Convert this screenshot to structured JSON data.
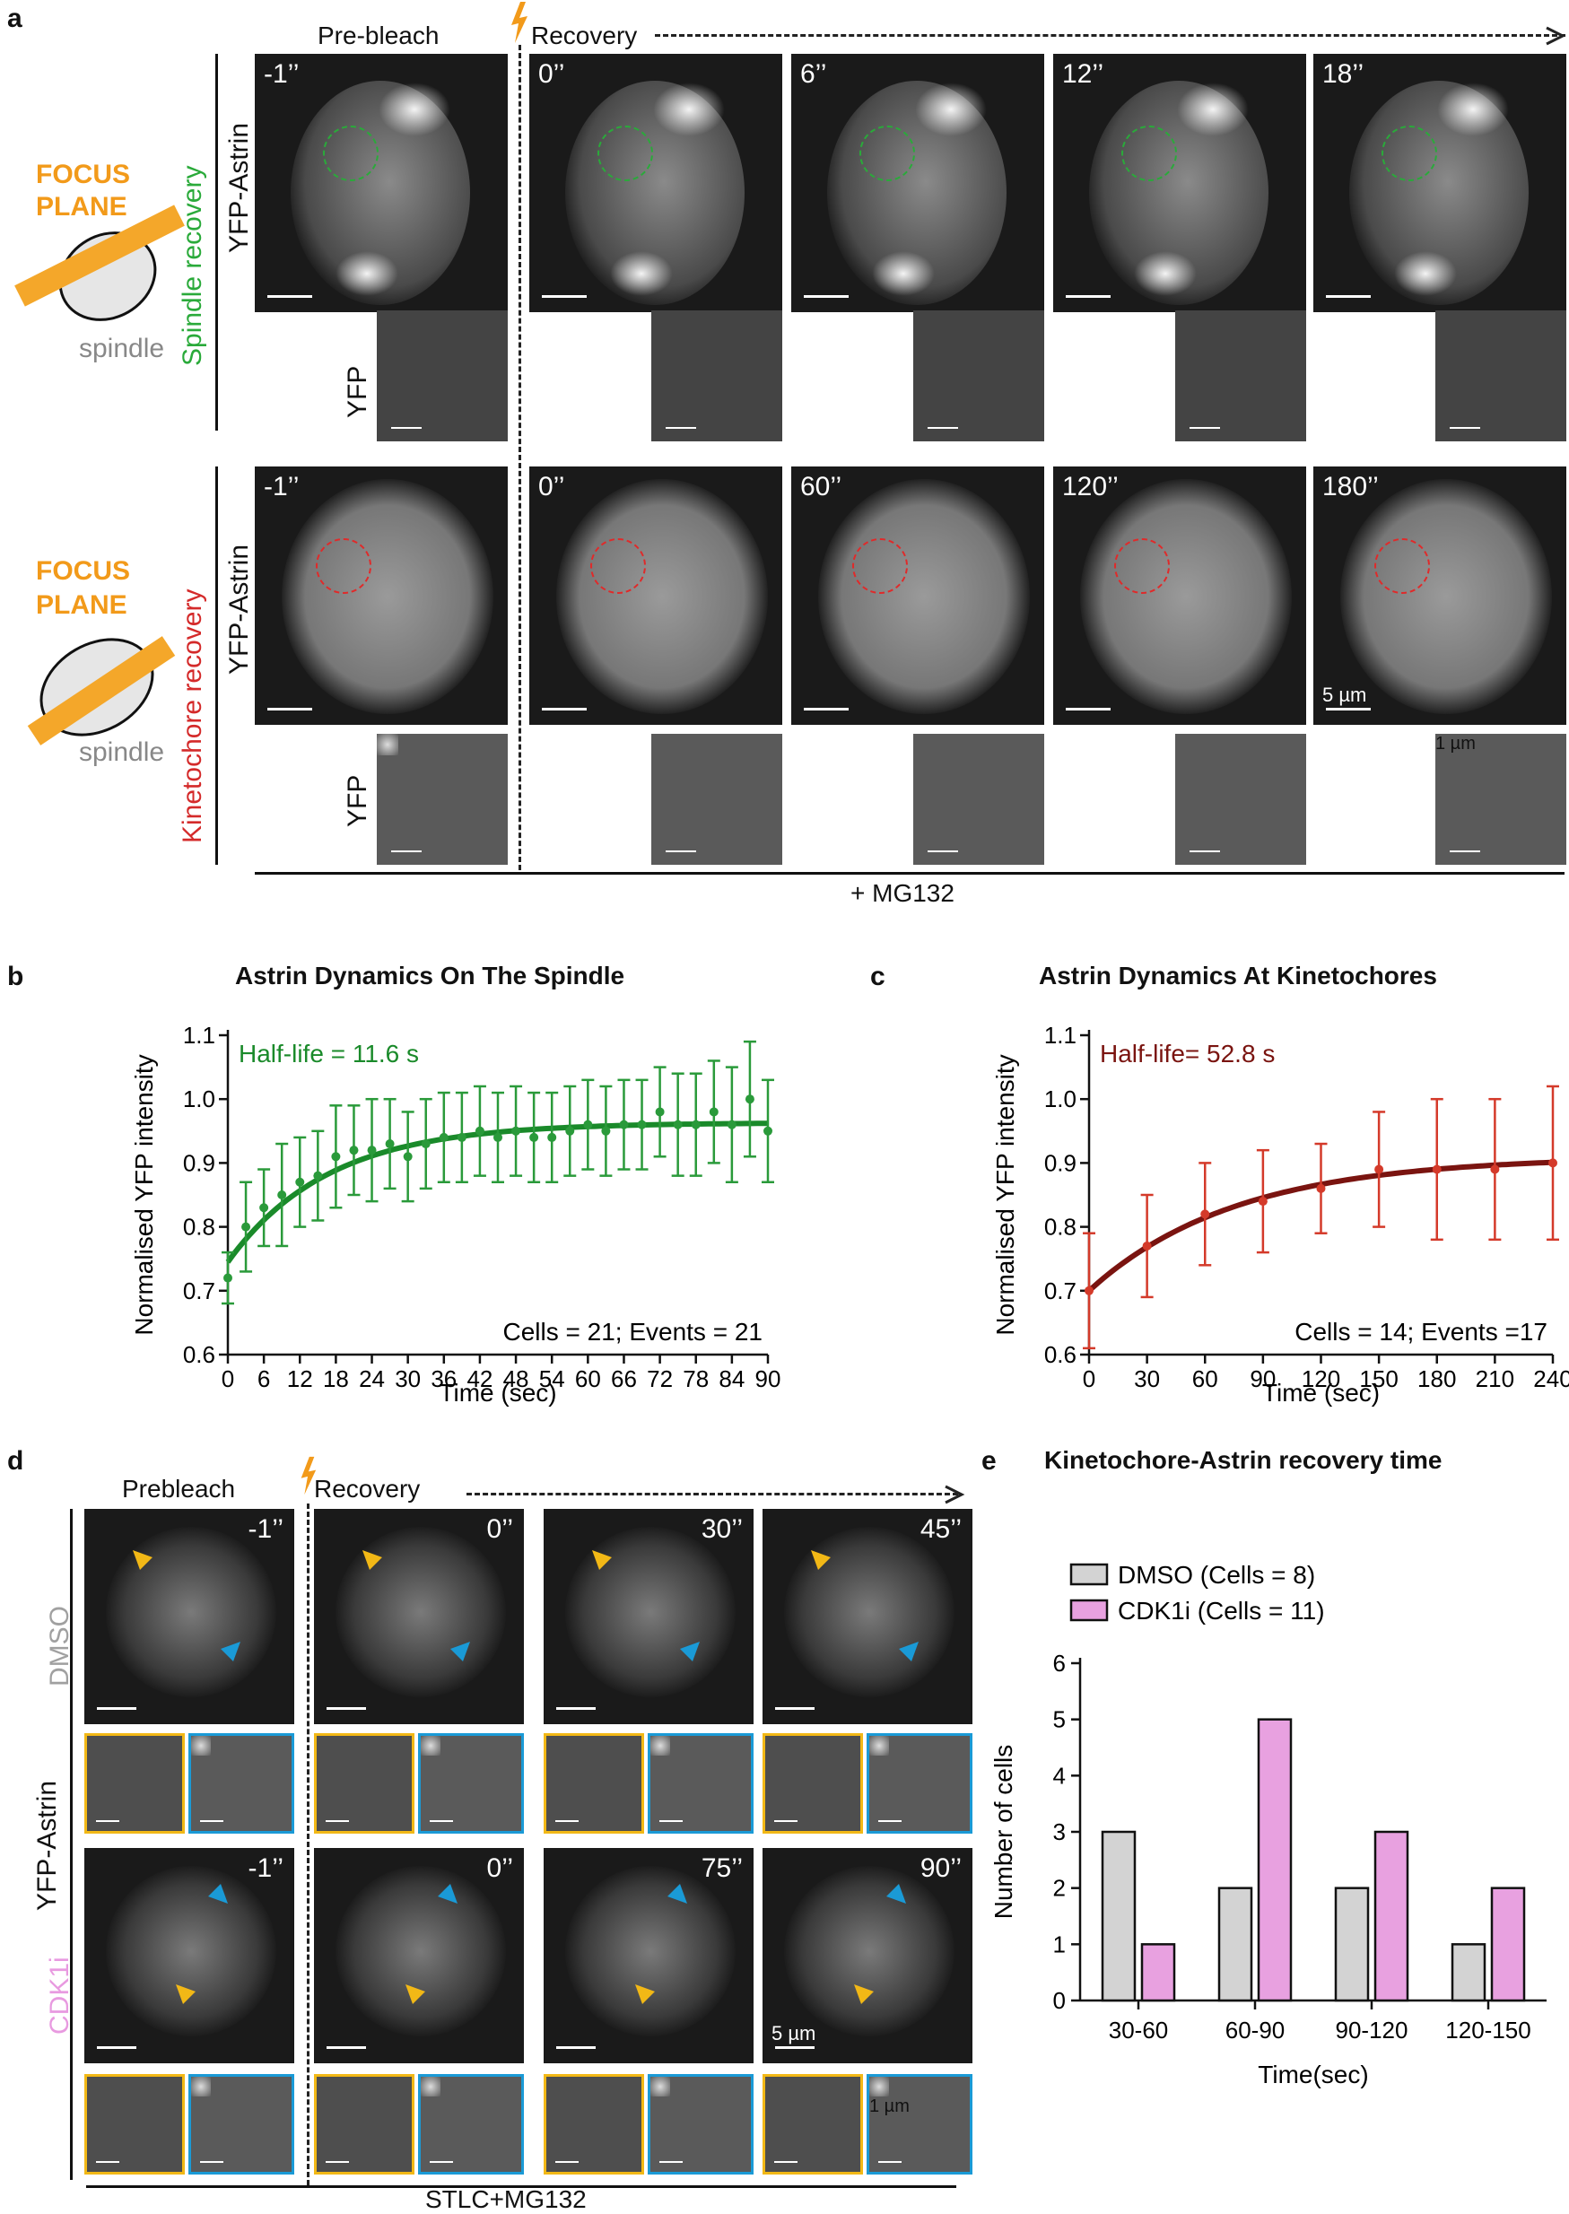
{
  "panel_a": {
    "letter": "a",
    "header_prebleach": "Pre-bleach",
    "header_recovery": "Recovery",
    "focus_plane": [
      "FOCUS",
      "PLANE"
    ],
    "spindle_word": "spindle",
    "row1_label": "Spindle recovery",
    "row2_label": "Kinetochore recovery",
    "channel_label": "YFP-Astrin",
    "zoom_label": "YFP",
    "times_spindle": [
      "-1’’",
      "0’’",
      "6’’",
      "12’’",
      "18’’"
    ],
    "times_kinetochore": [
      "-1’’",
      "0’’",
      "60’’",
      "120’’",
      "180’’"
    ],
    "scale_big": "5 µm",
    "scale_small": "1 µm",
    "treatment": "+ MG132"
  },
  "panel_b": {
    "letter": "b",
    "chart_data": {
      "type": "line",
      "title": "Astrin Dynamics On The Spindle",
      "xlabel": "Time (sec)",
      "ylabel": "Normalised YFP intensity",
      "xlim": [
        0,
        90
      ],
      "ylim": [
        0.6,
        1.1
      ],
      "xticks": [
        0,
        6,
        12,
        18,
        24,
        30,
        36,
        42,
        48,
        54,
        60,
        66,
        72,
        78,
        84,
        90
      ],
      "yticks": [
        0.6,
        0.7,
        0.8,
        0.9,
        1.0,
        1.1
      ],
      "annotation": "Half-life = 11.6 s",
      "note": "Cells = 21; Events = 21",
      "color": "#2a9a3a",
      "fit_color": "#1a8a2a",
      "fit": {
        "y0": 0.745,
        "plateau": 0.963,
        "half_life": 11.6
      },
      "points": [
        {
          "x": 0,
          "y": 0.72,
          "err": 0.04
        },
        {
          "x": 3,
          "y": 0.8,
          "err": 0.07
        },
        {
          "x": 6,
          "y": 0.83,
          "err": 0.06
        },
        {
          "x": 9,
          "y": 0.85,
          "err": 0.08
        },
        {
          "x": 12,
          "y": 0.87,
          "err": 0.07
        },
        {
          "x": 15,
          "y": 0.88,
          "err": 0.07
        },
        {
          "x": 18,
          "y": 0.91,
          "err": 0.08
        },
        {
          "x": 21,
          "y": 0.92,
          "err": 0.07
        },
        {
          "x": 24,
          "y": 0.92,
          "err": 0.08
        },
        {
          "x": 27,
          "y": 0.93,
          "err": 0.07
        },
        {
          "x": 30,
          "y": 0.91,
          "err": 0.07
        },
        {
          "x": 33,
          "y": 0.93,
          "err": 0.07
        },
        {
          "x": 36,
          "y": 0.94,
          "err": 0.07
        },
        {
          "x": 39,
          "y": 0.94,
          "err": 0.07
        },
        {
          "x": 42,
          "y": 0.95,
          "err": 0.07
        },
        {
          "x": 45,
          "y": 0.94,
          "err": 0.07
        },
        {
          "x": 48,
          "y": 0.95,
          "err": 0.07
        },
        {
          "x": 51,
          "y": 0.94,
          "err": 0.07
        },
        {
          "x": 54,
          "y": 0.94,
          "err": 0.07
        },
        {
          "x": 57,
          "y": 0.95,
          "err": 0.07
        },
        {
          "x": 60,
          "y": 0.96,
          "err": 0.07
        },
        {
          "x": 63,
          "y": 0.95,
          "err": 0.07
        },
        {
          "x": 66,
          "y": 0.96,
          "err": 0.07
        },
        {
          "x": 69,
          "y": 0.96,
          "err": 0.07
        },
        {
          "x": 72,
          "y": 0.98,
          "err": 0.07
        },
        {
          "x": 75,
          "y": 0.96,
          "err": 0.08
        },
        {
          "x": 78,
          "y": 0.96,
          "err": 0.08
        },
        {
          "x": 81,
          "y": 0.98,
          "err": 0.08
        },
        {
          "x": 84,
          "y": 0.96,
          "err": 0.09
        },
        {
          "x": 87,
          "y": 1.0,
          "err": 0.09
        },
        {
          "x": 90,
          "y": 0.95,
          "err": 0.08
        }
      ]
    }
  },
  "panel_c": {
    "letter": "c",
    "chart_data": {
      "type": "line",
      "title": "Astrin Dynamics At Kinetochores",
      "xlabel": "Time (sec)",
      "ylabel": "Normalised YFP intensity",
      "xlim": [
        0,
        240
      ],
      "ylim": [
        0.6,
        1.1
      ],
      "xticks": [
        0,
        30,
        60,
        90,
        120,
        150,
        180,
        210,
        240
      ],
      "yticks": [
        0.6,
        0.7,
        0.8,
        0.9,
        1.0,
        1.1
      ],
      "annotation": "Half-life= 52.8 s",
      "note": "Cells = 14; Events =17",
      "color": "#d43a2a",
      "fit_color": "#7a1410",
      "fit": {
        "y0": 0.7,
        "plateau": 0.91,
        "half_life": 52.8
      },
      "points": [
        {
          "x": 0,
          "y": 0.7,
          "err": 0.09
        },
        {
          "x": 30,
          "y": 0.77,
          "err": 0.08
        },
        {
          "x": 60,
          "y": 0.82,
          "err": 0.08
        },
        {
          "x": 90,
          "y": 0.84,
          "err": 0.08
        },
        {
          "x": 120,
          "y": 0.86,
          "err": 0.07
        },
        {
          "x": 150,
          "y": 0.89,
          "err": 0.09
        },
        {
          "x": 180,
          "y": 0.89,
          "err": 0.11
        },
        {
          "x": 210,
          "y": 0.89,
          "err": 0.11
        },
        {
          "x": 240,
          "y": 0.9,
          "err": 0.12
        }
      ]
    }
  },
  "panel_d": {
    "letter": "d",
    "header_prebleach": "Prebleach",
    "header_recovery": "Recovery",
    "channel_label": "YFP-Astrin",
    "row1_label": "DMSO",
    "row2_label": "CDK1i",
    "times_dmso": [
      "-1’’",
      "0’’",
      "30’’",
      "45’’"
    ],
    "times_cdk1i": [
      "-1’’",
      "0’’",
      "75’’",
      "90’’"
    ],
    "scale_big": "5 µm",
    "scale_small": "1 µm",
    "treatment": "STLC+MG132",
    "yellow": "#f2b816",
    "blue": "#1a9ad6"
  },
  "panel_e": {
    "letter": "e",
    "chart_data": {
      "type": "bar",
      "title": "Kinetochore-Astrin recovery time",
      "categories": [
        "30-60",
        "60-90",
        "90-120",
        "120-150"
      ],
      "series": [
        {
          "name": "DMSO (Cells = 8)",
          "values": [
            3,
            2,
            2,
            1
          ],
          "color": "#d3d3d3"
        },
        {
          "name": "CDK1i (Cells = 11)",
          "values": [
            1,
            5,
            3,
            2
          ],
          "color": "#e8a1e0"
        }
      ],
      "xlabel": "Time(sec)",
      "ylabel": "Number of cells",
      "ylim": [
        0,
        6
      ],
      "yticks": [
        0,
        1,
        2,
        3,
        4,
        5,
        6
      ],
      "legend": "top-left"
    }
  }
}
